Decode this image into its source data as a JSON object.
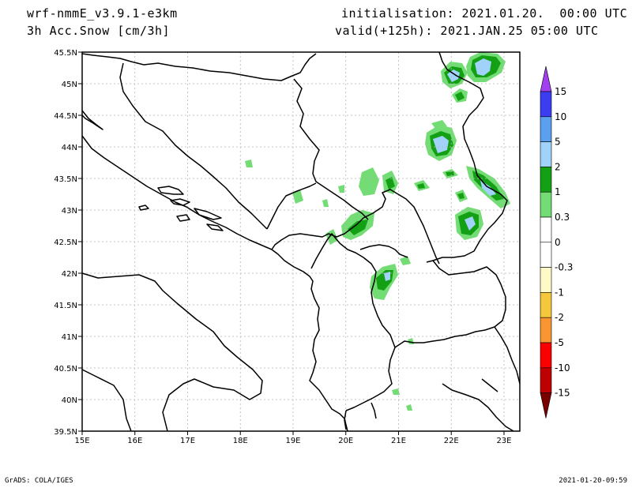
{
  "header": {
    "model": "wrf-nmmE_v3.9.1-e3km",
    "field": "3h Acc.Snow [cm/3h]",
    "initialisation": "initialisation: 2021.01.20.  00:00 UTC",
    "valid": "valid(+125h): 2021.JAN.25 05:00 UTC"
  },
  "footer": {
    "left": "GrADS: COLA/IGES",
    "right": "2021-01-20-09:59"
  },
  "map": {
    "lon_ticks": [
      "15E",
      "16E",
      "17E",
      "18E",
      "19E",
      "20E",
      "21E",
      "22E",
      "23E"
    ],
    "lat_ticks": [
      "45.5N",
      "45N",
      "44.5N",
      "44N",
      "43.5N",
      "43N",
      "42.5N",
      "42N",
      "41.5N",
      "41N",
      "40.5N",
      "40N",
      "39.5N"
    ],
    "lon_range": [
      15,
      23.3
    ],
    "lat_range": [
      39.5,
      45.5
    ]
  },
  "colorbar": {
    "labels": [
      "15",
      "10",
      "5",
      "2",
      "1",
      "0.3",
      "0",
      "-0.3",
      "-1",
      "-2",
      "-5",
      "-10",
      "-15"
    ],
    "colors": [
      "#3c3cf0",
      "#5aa0ee",
      "#a0d2fa",
      "#14a014",
      "#74dc74",
      "#ffffff",
      "#ffffff",
      "#fffac8",
      "#f5c83c",
      "#fa9632",
      "#fa0000",
      "#be0000",
      "#7a0000"
    ],
    "top_cap": "#a040f0",
    "bottom_cap": "#7a0000"
  },
  "legend_colors": {
    "green_light": "#74dc74",
    "green_dark": "#14a014",
    "blue_light": "#a0d2fa",
    "blue_mid": "#5aa0ee"
  }
}
